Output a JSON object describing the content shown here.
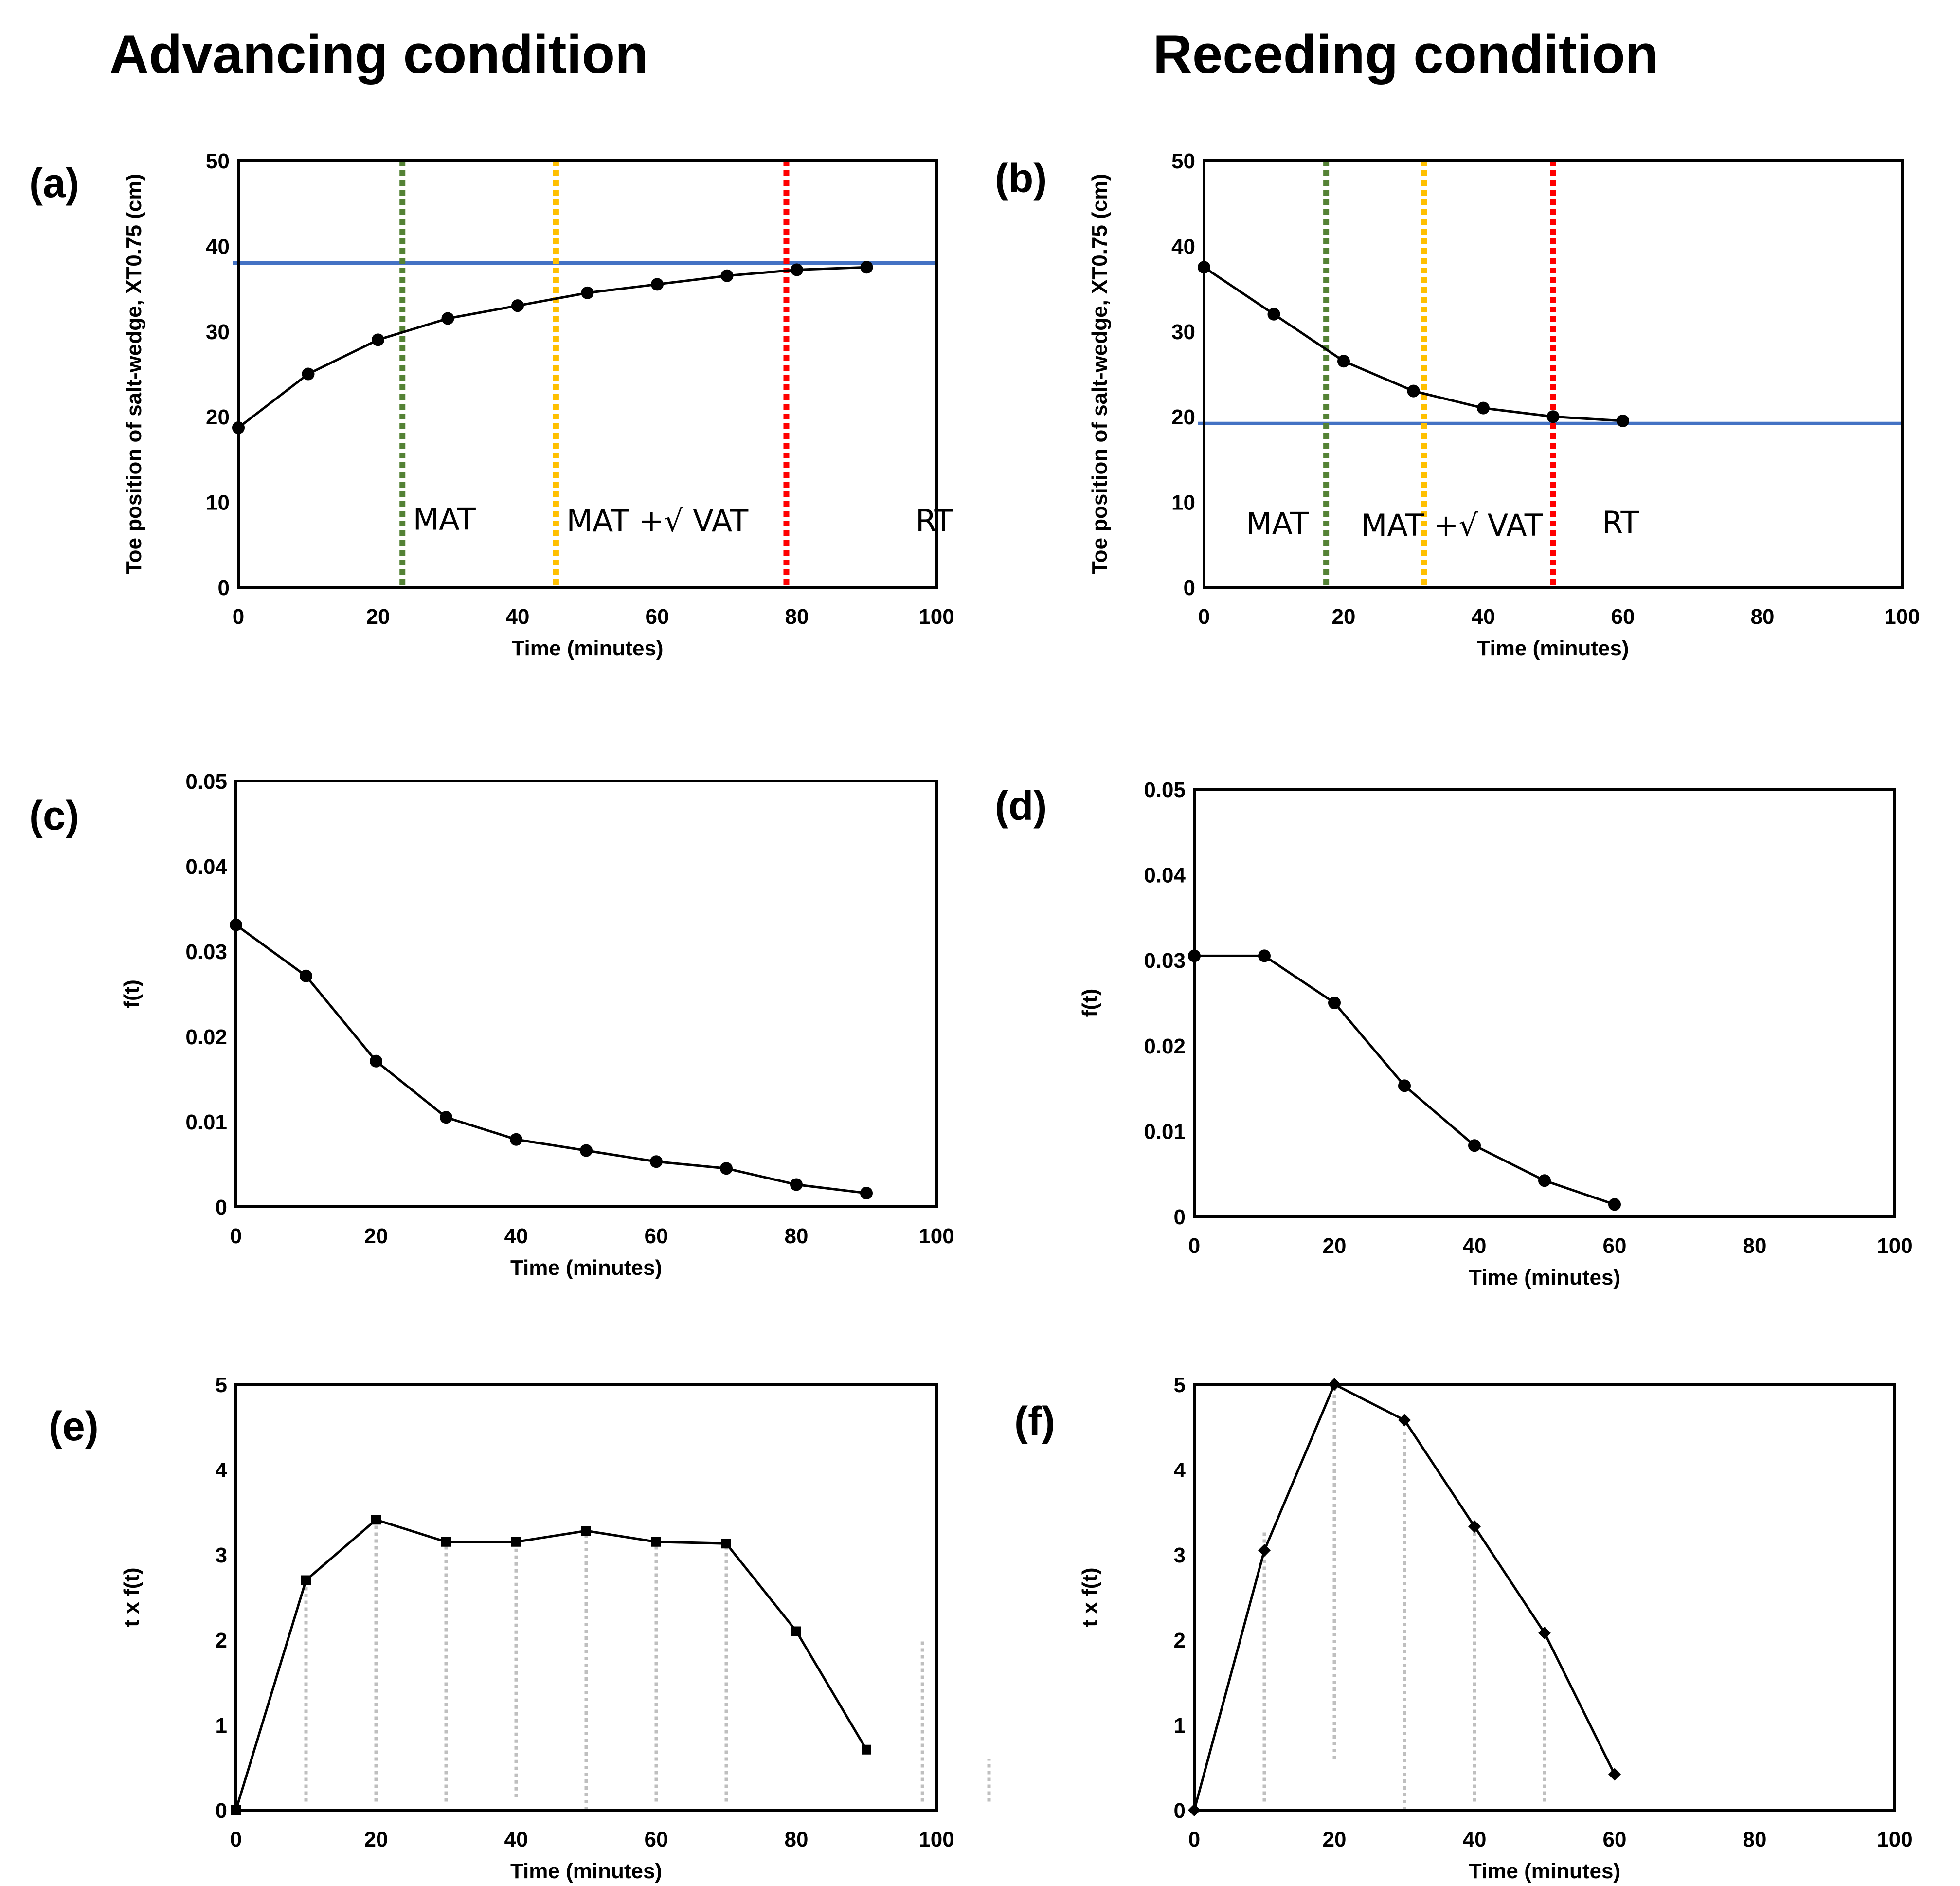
{
  "columns": {
    "left_title": "Advancing condition",
    "right_title": "Receding condition"
  },
  "colors": {
    "ref_line": "#4472C4",
    "mat": "#548235",
    "mat_vat": "#FFC000",
    "rt": "#FF0000",
    "stem": "#BFBFBF",
    "series": "#000000"
  },
  "chart_data": [
    {
      "id": "a",
      "panel_label": "(a)",
      "type": "line",
      "xlabel": "Time (minutes)",
      "ylabel": "Toe position of salt-wedge, XT0.75 (cm)",
      "xlim": [
        0,
        100
      ],
      "ylim": [
        0,
        50
      ],
      "xticks": [
        "0",
        "20",
        "40",
        "60",
        "80",
        "100"
      ],
      "yticks": [
        "0",
        "10",
        "20",
        "30",
        "40",
        "50"
      ],
      "marker": "circle",
      "series": [
        {
          "x": [
            0,
            10,
            20,
            30,
            40,
            50,
            60,
            70,
            80,
            90
          ],
          "y": [
            18.7,
            25,
            29,
            31.5,
            33,
            34.5,
            35.5,
            36.5,
            37.2,
            37.5
          ]
        }
      ],
      "hline": {
        "y": 38,
        "color": "#4472C4"
      },
      "vlines": [
        {
          "x": 23.5,
          "color": "#548235",
          "label": "MAT",
          "label_x": 25,
          "label_y": 8
        },
        {
          "x": 45.5,
          "color": "#FFC000",
          "label": "MAT +√ VAT",
          "label_x": 47,
          "label_y": 7.8
        },
        {
          "x": 78.5,
          "color": "#FF0000",
          "label": "RT",
          "label_x": 97,
          "label_y": 7.8
        }
      ]
    },
    {
      "id": "b",
      "panel_label": "(b)",
      "type": "line",
      "xlabel": "Time (minutes)",
      "ylabel": "Toe position of salt-wedge, XT0.75 (cm)",
      "xlim": [
        0,
        100
      ],
      "ylim": [
        0,
        50
      ],
      "xticks": [
        "0",
        "20",
        "40",
        "60",
        "80",
        "100"
      ],
      "yticks": [
        "0",
        "10",
        "20",
        "30",
        "40",
        "50"
      ],
      "marker": "circle",
      "series": [
        {
          "x": [
            0,
            10,
            20,
            30,
            40,
            50,
            60
          ],
          "y": [
            37.5,
            32,
            26.5,
            23,
            21,
            20,
            19.5
          ]
        }
      ],
      "hline": {
        "y": 19.2,
        "color": "#4472C4"
      },
      "vlines": [
        {
          "x": 17.5,
          "color": "#548235",
          "label": "MAT",
          "label_x": 6,
          "label_y": 7.5
        },
        {
          "x": 31.5,
          "color": "#FFC000",
          "label": "MAT +√ VAT",
          "label_x": 22.5,
          "label_y": 7.3
        },
        {
          "x": 50,
          "color": "#FF0000",
          "label": "RT",
          "label_x": 57,
          "label_y": 7.6
        }
      ]
    },
    {
      "id": "c",
      "panel_label": "(c)",
      "type": "line",
      "xlabel": "Time (minutes)",
      "ylabel": "f(t)",
      "xlim": [
        0,
        100
      ],
      "ylim": [
        0,
        0.05
      ],
      "xticks": [
        "0",
        "20",
        "40",
        "60",
        "80",
        "100"
      ],
      "yticks": [
        "0",
        "0.01",
        "0.02",
        "0.03",
        "0.04",
        "0.05"
      ],
      "marker": "circle",
      "series": [
        {
          "x": [
            0,
            10,
            20,
            30,
            40,
            50,
            60,
            70,
            80,
            90
          ],
          "y": [
            0.0331,
            0.0271,
            0.0171,
            0.0105,
            0.0079,
            0.0066,
            0.0053,
            0.0045,
            0.0026,
            0.0016
          ]
        }
      ]
    },
    {
      "id": "d",
      "panel_label": "(d)",
      "type": "line",
      "xlabel": "Time (minutes)",
      "ylabel": "f(t)",
      "xlim": [
        0,
        100
      ],
      "ylim": [
        0,
        0.05
      ],
      "xticks": [
        "0",
        "20",
        "40",
        "60",
        "80",
        "100"
      ],
      "yticks": [
        "0",
        "0.01",
        "0.02",
        "0.03",
        "0.04",
        "0.05"
      ],
      "marker": "circle",
      "series": [
        {
          "x": [
            0,
            10,
            20,
            30,
            40,
            50,
            60
          ],
          "y": [
            0.0305,
            0.0305,
            0.025,
            0.0153,
            0.0083,
            0.0042,
            0.0014
          ]
        }
      ]
    },
    {
      "id": "e",
      "panel_label": "(e)",
      "type": "line",
      "xlabel": "Time (minutes)",
      "ylabel": "t x f(t)",
      "xlim": [
        0,
        100
      ],
      "ylim": [
        0,
        5
      ],
      "xticks": [
        "0",
        "20",
        "40",
        "60",
        "80",
        "100"
      ],
      "yticks": [
        "0",
        "1",
        "2",
        "3",
        "4",
        "5"
      ],
      "marker": "square",
      "series": [
        {
          "x": [
            0,
            10,
            20,
            30,
            40,
            50,
            60,
            70,
            80,
            90
          ],
          "y": [
            0,
            2.7,
            3.41,
            3.15,
            3.15,
            3.28,
            3.15,
            3.13,
            2.1,
            0.71
          ]
        }
      ],
      "stems": [
        {
          "x": 10,
          "y0": 0.1,
          "y1": 2.7
        },
        {
          "x": 20,
          "y0": 0.1,
          "y1": 3.4
        },
        {
          "x": 30,
          "y0": 0.1,
          "y1": 3.15
        },
        {
          "x": 40,
          "y0": 0.15,
          "y1": 3.15
        },
        {
          "x": 50,
          "y0": 0.0,
          "y1": 3.28
        },
        {
          "x": 60,
          "y0": 0.1,
          "y1": 3.15
        },
        {
          "x": 70,
          "y0": 0.1,
          "y1": 3.13
        },
        {
          "x": 98,
          "y0": 0.1,
          "y1": 2.0
        },
        {
          "x": 107.5,
          "y0": 0.1,
          "y1": 0.6
        }
      ]
    },
    {
      "id": "f",
      "panel_label": "(f)",
      "type": "line",
      "xlabel": "Time (minutes)",
      "ylabel": "t x f(t)",
      "xlim": [
        0,
        100
      ],
      "ylim": [
        0,
        5
      ],
      "xticks": [
        "0",
        "20",
        "40",
        "60",
        "80",
        "100"
      ],
      "yticks": [
        "0",
        "1",
        "2",
        "3",
        "4",
        "5"
      ],
      "marker": "diamond",
      "series": [
        {
          "x": [
            0,
            10,
            20,
            30,
            40,
            50,
            60
          ],
          "y": [
            0,
            3.05,
            5.0,
            4.58,
            3.33,
            2.08,
            0.42
          ]
        }
      ],
      "stems": [
        {
          "x": 10,
          "y0": 0.1,
          "y1": 3.3
        },
        {
          "x": 20,
          "y0": 0.6,
          "y1": 5.0
        },
        {
          "x": 30,
          "y0": 0.0,
          "y1": 4.45
        },
        {
          "x": 40,
          "y0": 0.1,
          "y1": 3.3
        },
        {
          "x": 50,
          "y0": 0.1,
          "y1": 1.9
        }
      ]
    }
  ]
}
